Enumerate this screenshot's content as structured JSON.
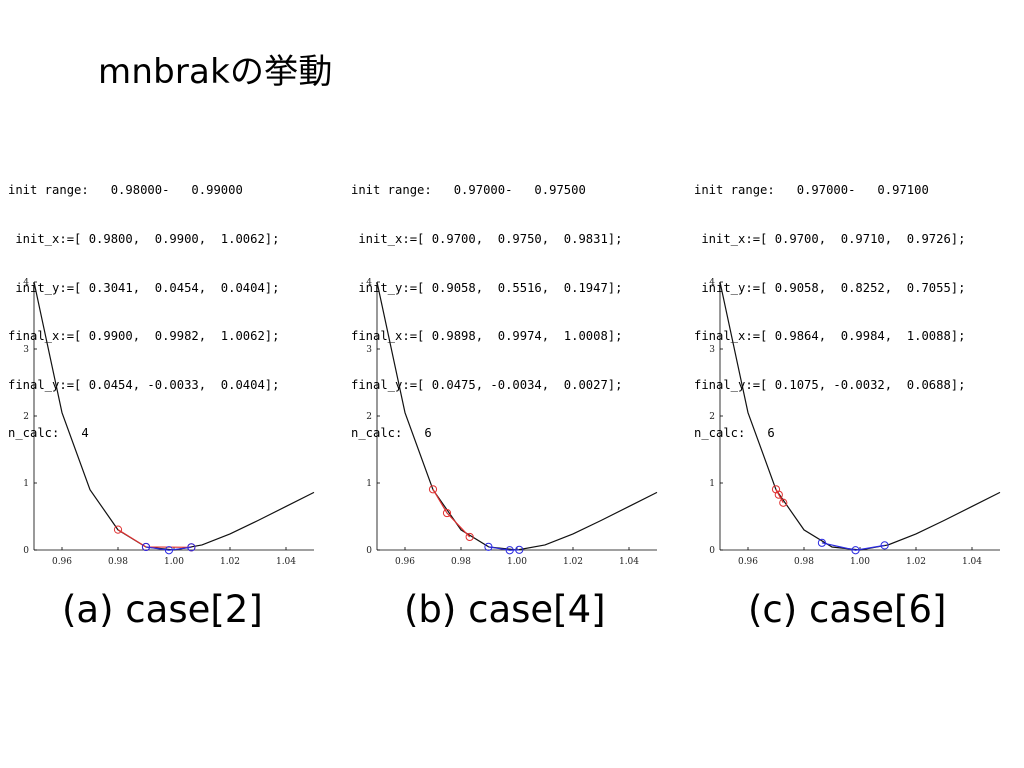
{
  "title": "mnbrakの挙動",
  "colors": {
    "curve": "#111111",
    "initial": "#e03030",
    "final": "#2a2ae0",
    "axis": "#000000"
  },
  "panels": [
    {
      "lines": [
        "init range:   0.98000-   0.99000",
        " init_x:=[ 0.9800,  0.9900,  1.0062];",
        " init_y:=[ 0.3041,  0.0454,  0.0404];",
        "final_x:=[ 0.9900,  0.9982,  1.0062];",
        "final_y:=[ 0.0454, -0.0033,  0.0404];",
        "n_calc:   4"
      ],
      "caption": "(a) case[2]"
    },
    {
      "lines": [
        "init range:   0.97000-   0.97500",
        " init_x:=[ 0.9700,  0.9750,  0.9831];",
        " init_y:=[ 0.9058,  0.5516,  0.1947];",
        "final_x:=[ 0.9898,  0.9974,  1.0008];",
        "final_y:=[ 0.0475, -0.0034,  0.0027];",
        "n_calc:   6"
      ],
      "caption": "(b) case[4]"
    },
    {
      "lines": [
        "init range:   0.97000-   0.97100",
        " init_x:=[ 0.9700,  0.9710,  0.9726];",
        " init_y:=[ 0.9058,  0.8252,  0.7055];",
        "final_x:=[ 0.9864,  0.9984,  1.0088];",
        "final_y:=[ 0.1075, -0.0032,  0.0688];",
        "n_calc:   6"
      ],
      "caption": "(c) case[6]"
    }
  ],
  "chart_data": [
    {
      "type": "line",
      "xlim": [
        0.95,
        1.05
      ],
      "ylim": [
        0,
        4
      ],
      "xticks": [
        "0.96",
        "0.98",
        "1.00",
        "1.02",
        "1.04"
      ],
      "yticks": [
        "0",
        "1",
        "2",
        "3",
        "4"
      ],
      "curve": {
        "x": [
          0.95,
          0.96,
          0.97,
          0.98,
          0.99,
          1.0,
          1.01,
          1.02,
          1.03,
          1.04,
          1.05
        ],
        "y": [
          4.0,
          2.05,
          0.9,
          0.3,
          0.045,
          0.0,
          0.075,
          0.24,
          0.44,
          0.65,
          0.86
        ]
      },
      "series": [
        {
          "x": [
            0.98,
            0.99,
            1.0062
          ],
          "y": [
            0.3041,
            0.0454,
            0.0404
          ]
        },
        {
          "x": [
            0.99,
            0.9982,
            1.0062
          ],
          "y": [
            0.0454,
            -0.0033,
            0.0404
          ]
        }
      ]
    },
    {
      "type": "line",
      "xlim": [
        0.95,
        1.05
      ],
      "ylim": [
        0,
        4
      ],
      "xticks": [
        "0.96",
        "0.98",
        "1.00",
        "1.02",
        "1.04"
      ],
      "yticks": [
        "0",
        "1",
        "2",
        "3",
        "4"
      ],
      "curve": {
        "x": [
          0.95,
          0.96,
          0.97,
          0.98,
          0.99,
          1.0,
          1.01,
          1.02,
          1.03,
          1.04,
          1.05
        ],
        "y": [
          4.0,
          2.05,
          0.9,
          0.3,
          0.045,
          0.0,
          0.075,
          0.24,
          0.44,
          0.65,
          0.86
        ]
      },
      "series": [
        {
          "x": [
            0.97,
            0.975,
            0.9831
          ],
          "y": [
            0.9058,
            0.5516,
            0.1947
          ]
        },
        {
          "x": [
            0.9898,
            0.9974,
            1.0008
          ],
          "y": [
            0.0475,
            -0.0034,
            0.0027
          ]
        }
      ]
    },
    {
      "type": "line",
      "xlim": [
        0.95,
        1.05
      ],
      "ylim": [
        0,
        4
      ],
      "xticks": [
        "0.96",
        "0.98",
        "1.00",
        "1.02",
        "1.04"
      ],
      "yticks": [
        "0",
        "1",
        "2",
        "3",
        "4"
      ],
      "curve": {
        "x": [
          0.95,
          0.96,
          0.97,
          0.98,
          0.99,
          1.0,
          1.01,
          1.02,
          1.03,
          1.04,
          1.05
        ],
        "y": [
          4.0,
          2.05,
          0.9,
          0.3,
          0.045,
          0.0,
          0.075,
          0.24,
          0.44,
          0.65,
          0.86
        ]
      },
      "series": [
        {
          "x": [
            0.97,
            0.971,
            0.9726
          ],
          "y": [
            0.9058,
            0.8252,
            0.7055
          ]
        },
        {
          "x": [
            0.9864,
            0.9984,
            1.0088
          ],
          "y": [
            0.1075,
            -0.0032,
            0.0688
          ]
        }
      ]
    }
  ]
}
